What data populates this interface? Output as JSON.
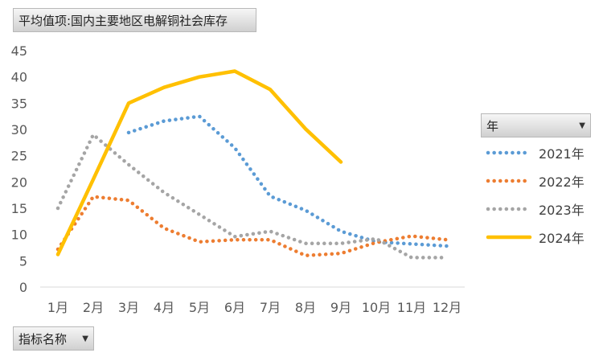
{
  "value_field_label": "平均值项:国内主要地区电解铜社会库存",
  "dimension_field_label": "指标名称",
  "legend_field_label": "年",
  "dropdown_arrow": "▼",
  "chart_data": {
    "type": "line",
    "title": "",
    "xlabel": "",
    "ylabel": "",
    "categories": [
      "1月",
      "2月",
      "3月",
      "4月",
      "5月",
      "6月",
      "7月",
      "8月",
      "9月",
      "10月",
      "11月",
      "12月"
    ],
    "ylim": [
      0,
      45
    ],
    "yticks": [
      0,
      5,
      10,
      15,
      20,
      25,
      30,
      35,
      40,
      45
    ],
    "grid": false,
    "legend_position": "right",
    "series": [
      {
        "name": "2021年",
        "color": "#5b9bd5",
        "style": "dotted",
        "values": [
          null,
          null,
          29.4,
          31.6,
          32.5,
          26.5,
          17.3,
          14.6,
          10.6,
          8.6,
          8.2,
          7.8
        ]
      },
      {
        "name": "2022年",
        "color": "#ed7d31",
        "style": "dotted",
        "values": [
          7.2,
          17.2,
          16.5,
          11.2,
          8.6,
          9.0,
          9.0,
          6.0,
          6.4,
          8.5,
          9.7,
          9.0
        ]
      },
      {
        "name": "2023年",
        "color": "#a5a5a5",
        "style": "dotted",
        "values": [
          15.0,
          29.0,
          23.3,
          18.0,
          13.8,
          9.6,
          10.6,
          8.3,
          8.3,
          9.2,
          5.6,
          5.6
        ]
      },
      {
        "name": "2024年",
        "color": "#ffc000",
        "style": "solid",
        "values": [
          6.2,
          20.5,
          35.0,
          38.0,
          40.0,
          41.1,
          37.6,
          30.1,
          23.8,
          null,
          null,
          null
        ]
      }
    ]
  }
}
